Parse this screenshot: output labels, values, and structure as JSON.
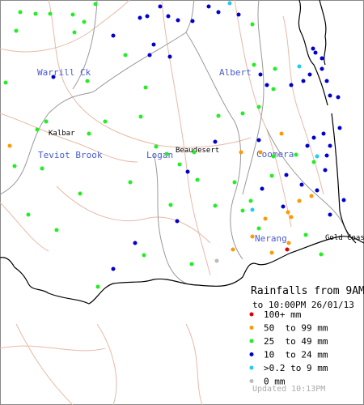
{
  "regions": [
    "Warrill Ck",
    "Albert",
    "Teviot Brook",
    "Logan",
    "Coomera",
    "Nerang"
  ],
  "towns": [
    "Kalbar",
    "Beaudesert",
    "Gold Coast"
  ],
  "legend": {
    "title": "Rainfalls from 9AM",
    "subtitle": "to 10:00PM 26/01/13",
    "items": [
      "100+ mm",
      "50  to 99 mm",
      "25  to 49 mm",
      "10  to 24 mm",
      ">0.2 to 9 mm",
      "0 mm"
    ]
  },
  "updated": "Updated 10:13PM"
}
